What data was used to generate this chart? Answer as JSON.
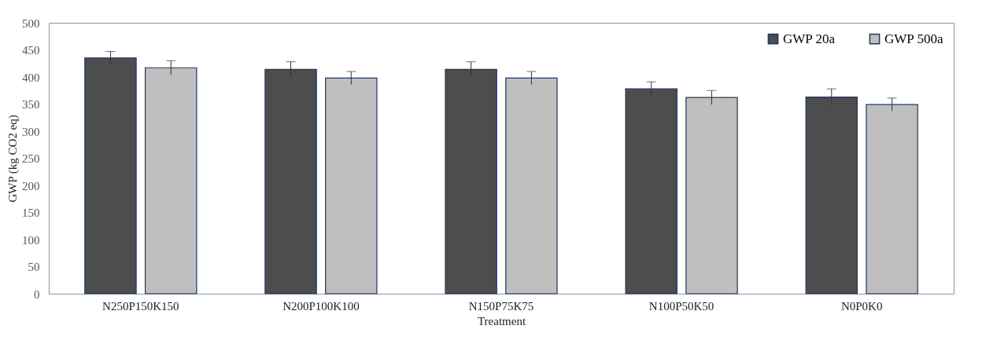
{
  "chart_data": {
    "type": "bar",
    "xlabel": "Treatment",
    "ylabel": "GWP (kg CO2 eq)",
    "categories": [
      "N250P150K150",
      "N200P100K100",
      "N150P75K75",
      "N100P50K50",
      "N0P0K0"
    ],
    "series": [
      {
        "name": "GWP 20a",
        "color": "#4d4d4d",
        "values": [
          435,
          414,
          414,
          378,
          363
        ],
        "errors": [
          12,
          14,
          14,
          13,
          15
        ]
      },
      {
        "name": "GWP 500a",
        "color": "#bfbfbf",
        "values": [
          417,
          398,
          398,
          362,
          349
        ],
        "errors": [
          13,
          12,
          12,
          13,
          12
        ]
      }
    ],
    "ylim": [
      0,
      500
    ],
    "yticks": [
      0,
      50,
      100,
      150,
      200,
      250,
      300,
      350,
      400,
      450,
      500
    ],
    "grid": false,
    "legend": "top right"
  }
}
